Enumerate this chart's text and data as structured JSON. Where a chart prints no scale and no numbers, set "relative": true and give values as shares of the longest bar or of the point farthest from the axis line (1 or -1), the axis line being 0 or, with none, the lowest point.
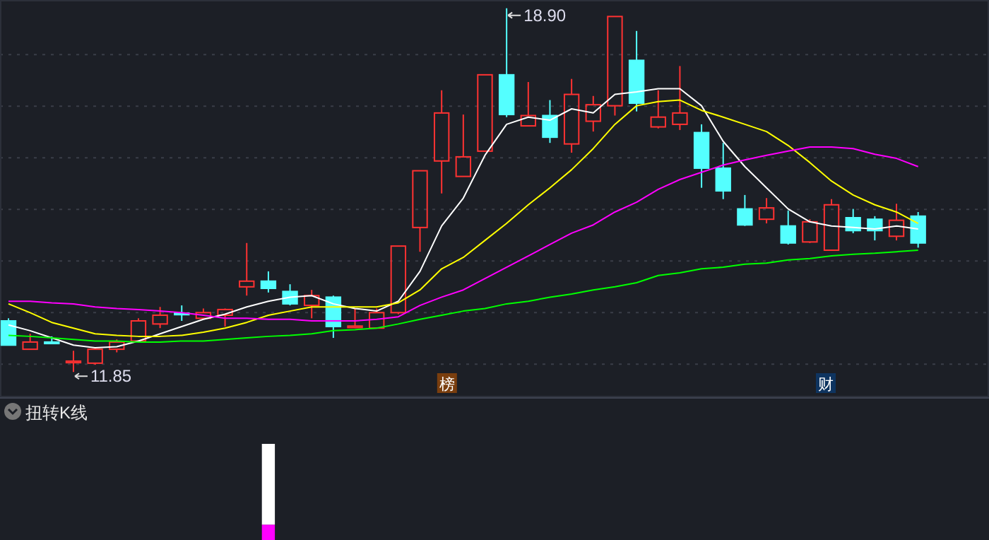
{
  "chart_data": [
    {
      "type": "candlestick",
      "categories": [
        null,
        null,
        null,
        null,
        null,
        null,
        null,
        null,
        null,
        null,
        null,
        null,
        null,
        null,
        null,
        null,
        null,
        null,
        null,
        null,
        null,
        null,
        null,
        null,
        null,
        null,
        null,
        null,
        null,
        null,
        null,
        null,
        null,
        null,
        null,
        null,
        null,
        null,
        null,
        null,
        null,
        null,
        null
      ],
      "ohlc": [
        [
          12.84,
          12.89,
          12.37,
          12.37
        ],
        [
          12.29,
          12.59,
          12.29,
          12.43
        ],
        [
          12.43,
          12.54,
          12.4,
          12.4
        ],
        [
          12.03,
          12.26,
          11.85,
          12.06
        ],
        [
          12.02,
          12.32,
          11.99,
          12.29
        ],
        [
          12.29,
          12.48,
          12.23,
          12.43
        ],
        [
          12.45,
          12.89,
          12.43,
          12.84
        ],
        [
          12.78,
          13.11,
          12.7,
          12.95
        ],
        [
          12.99,
          13.14,
          12.84,
          12.96
        ],
        [
          12.89,
          13.08,
          12.89,
          13.0
        ],
        [
          12.95,
          13.08,
          12.73,
          13.06
        ],
        [
          13.5,
          14.35,
          13.33,
          13.61
        ],
        [
          13.61,
          13.8,
          13.39,
          13.47
        ],
        [
          13.41,
          13.55,
          13.14,
          13.17
        ],
        [
          13.14,
          13.44,
          12.89,
          13.33
        ],
        [
          13.3,
          13.33,
          12.51,
          12.73
        ],
        [
          12.71,
          13.08,
          12.7,
          12.74
        ],
        [
          12.7,
          13.08,
          12.7,
          13.0
        ],
        [
          13.0,
          14.29,
          12.97,
          14.29
        ],
        [
          14.65,
          15.75,
          14.18,
          15.75
        ],
        [
          15.94,
          17.31,
          15.31,
          16.87
        ],
        [
          15.64,
          16.84,
          15.64,
          16.02
        ],
        [
          16.13,
          17.61,
          16.13,
          17.61
        ],
        [
          17.61,
          18.9,
          16.79,
          16.84
        ],
        [
          16.62,
          17.47,
          16.62,
          16.82
        ],
        [
          16.82,
          17.12,
          16.29,
          16.4
        ],
        [
          16.27,
          17.53,
          16.1,
          17.23
        ],
        [
          16.71,
          17.2,
          16.51,
          17.03
        ],
        [
          17.01,
          18.74,
          16.82,
          18.74
        ],
        [
          17.89,
          18.46,
          16.9,
          17.06
        ],
        [
          16.6,
          17.31,
          16.57,
          16.79
        ],
        [
          16.65,
          17.78,
          16.54,
          16.87
        ],
        [
          16.49,
          16.65,
          15.42,
          15.8
        ],
        [
          15.8,
          16.29,
          15.2,
          15.36
        ],
        [
          15.01,
          15.28,
          14.68,
          14.7
        ],
        [
          14.81,
          15.22,
          14.73,
          15.03
        ],
        [
          14.68,
          14.98,
          14.32,
          14.35
        ],
        [
          14.37,
          14.81,
          14.35,
          14.76
        ],
        [
          14.21,
          15.2,
          14.21,
          15.09
        ],
        [
          14.84,
          15.01,
          14.54,
          14.59
        ],
        [
          14.81,
          14.87,
          14.4,
          14.59
        ],
        [
          14.48,
          15.11,
          14.4,
          14.79
        ],
        [
          14.87,
          14.95,
          14.26,
          14.35
        ]
      ],
      "series": [
        {
          "type": "line",
          "color": "#ffffff",
          "values": [
            12.76,
            12.65,
            12.51,
            12.37,
            12.32,
            12.34,
            12.45,
            12.59,
            12.73,
            12.87,
            12.97,
            13.11,
            13.22,
            13.3,
            13.33,
            13.17,
            13.08,
            13.03,
            13.22,
            13.8,
            14.68,
            15.22,
            16.05,
            16.65,
            16.79,
            16.73,
            16.95,
            16.87,
            17.23,
            17.28,
            17.34,
            17.34,
            17.01,
            16.32,
            15.83,
            15.42,
            15.01,
            14.76,
            14.68,
            14.65,
            14.62,
            14.68,
            14.62
          ]
        },
        {
          "type": "line",
          "color": "#ffff00",
          "values": [
            13.17,
            13.0,
            12.81,
            12.7,
            12.59,
            12.56,
            12.54,
            12.54,
            12.56,
            12.62,
            12.7,
            12.81,
            12.95,
            13.03,
            13.11,
            13.11,
            13.11,
            13.11,
            13.19,
            13.44,
            13.85,
            14.07,
            14.4,
            14.73,
            15.09,
            15.42,
            15.77,
            16.18,
            16.65,
            17.01,
            17.09,
            17.12,
            16.92,
            16.79,
            16.65,
            16.51,
            16.24,
            15.91,
            15.55,
            15.28,
            15.09,
            14.95,
            14.73
          ]
        },
        {
          "type": "line",
          "color": "#ff00ff",
          "values": [
            13.22,
            13.22,
            13.19,
            13.17,
            13.11,
            13.08,
            13.06,
            13.03,
            13.0,
            12.95,
            12.89,
            12.89,
            12.87,
            12.87,
            12.84,
            12.84,
            12.84,
            12.87,
            12.92,
            13.14,
            13.3,
            13.44,
            13.66,
            13.88,
            14.1,
            14.32,
            14.54,
            14.7,
            14.95,
            15.14,
            15.39,
            15.58,
            15.72,
            15.86,
            15.96,
            16.05,
            16.13,
            16.21,
            16.21,
            16.18,
            16.07,
            15.99,
            15.83
          ]
        },
        {
          "type": "line",
          "color": "#00ff00",
          "values": [
            12.56,
            12.54,
            12.51,
            12.48,
            12.45,
            12.45,
            12.43,
            12.43,
            12.45,
            12.45,
            12.48,
            12.51,
            12.54,
            12.56,
            12.59,
            12.65,
            12.67,
            12.7,
            12.78,
            12.87,
            12.95,
            13.03,
            13.08,
            13.17,
            13.22,
            13.3,
            13.36,
            13.44,
            13.5,
            13.58,
            13.72,
            13.77,
            13.85,
            13.88,
            13.94,
            13.96,
            14.02,
            14.05,
            14.1,
            14.13,
            14.15,
            14.18,
            14.21
          ]
        }
      ],
      "ylim": [
        11.36,
        19.06
      ],
      "yticks": [
        {
          "value": 12,
          "label": null
        },
        {
          "value": 13,
          "label": null
        },
        {
          "value": 14,
          "label": null
        },
        {
          "value": 15,
          "label": null
        },
        {
          "value": 16,
          "label": null
        },
        {
          "value": 17,
          "label": null
        },
        {
          "value": 18,
          "label": null
        }
      ],
      "grid": "y",
      "tick_labels": false,
      "annotations": [
        "18.90",
        "11.85",
        "榜",
        "财"
      ]
    },
    {
      "type": "bar",
      "title": "扭转K线",
      "relative": true,
      "stacked": true,
      "categories": [
        null,
        null,
        null,
        null,
        null,
        null,
        null,
        null,
        null,
        null,
        null,
        null,
        null,
        null,
        null,
        null,
        null,
        null,
        null,
        null,
        null,
        null,
        null,
        null,
        null,
        null,
        null,
        null,
        null,
        null,
        null,
        null,
        null,
        null,
        null,
        null,
        null,
        null,
        null,
        null,
        null,
        null,
        null
      ],
      "series": [
        {
          "color": "#ff00ff",
          "values": [
            null,
            null,
            null,
            null,
            null,
            null,
            null,
            null,
            null,
            null,
            null,
            null,
            0.16,
            null,
            null,
            null,
            null,
            null,
            null,
            null,
            null,
            null,
            null,
            null,
            null,
            null,
            null,
            null,
            null,
            null,
            null,
            null,
            null,
            null,
            null,
            null,
            null,
            null,
            null,
            null,
            null,
            null,
            null
          ]
        },
        {
          "color": "#ffffff",
          "values": [
            null,
            null,
            null,
            null,
            null,
            null,
            null,
            null,
            null,
            null,
            null,
            null,
            0.84,
            null,
            null,
            null,
            null,
            null,
            null,
            null,
            null,
            null,
            null,
            null,
            null,
            null,
            null,
            null,
            null,
            null,
            null,
            null,
            null,
            null,
            null,
            null,
            null,
            null,
            null,
            null,
            null,
            null,
            null
          ]
        }
      ]
    }
  ]
}
